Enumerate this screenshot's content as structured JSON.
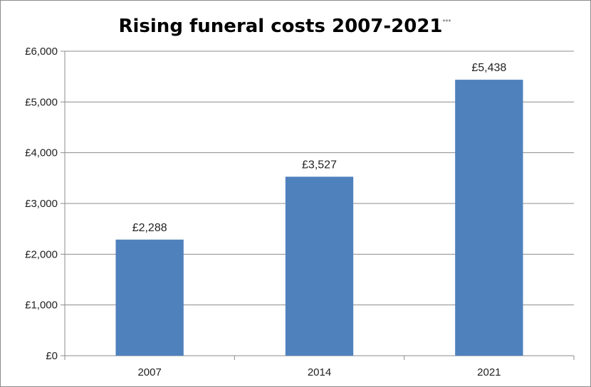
{
  "chart_data": {
    "type": "bar",
    "title": "Rising funeral costs  2007-2021",
    "title_mark": "***",
    "xlabel": "",
    "ylabel": "",
    "categories": [
      "2007",
      "2014",
      "2021"
    ],
    "values": [
      2288,
      3527,
      5438
    ],
    "data_labels": [
      "£2,288",
      "£3,527",
      "£5,438"
    ],
    "ylim": [
      0,
      6000
    ],
    "y_ticks": [
      0,
      1000,
      2000,
      3000,
      4000,
      5000,
      6000
    ],
    "y_tick_labels": [
      "£0",
      "£1,000",
      "£2,000",
      "£3,000",
      "£4,000",
      "£5,000",
      "£6,000"
    ],
    "grid": true,
    "legend": "none",
    "bar_color": "#4f81bd",
    "grid_color": "#8c8c8c"
  }
}
